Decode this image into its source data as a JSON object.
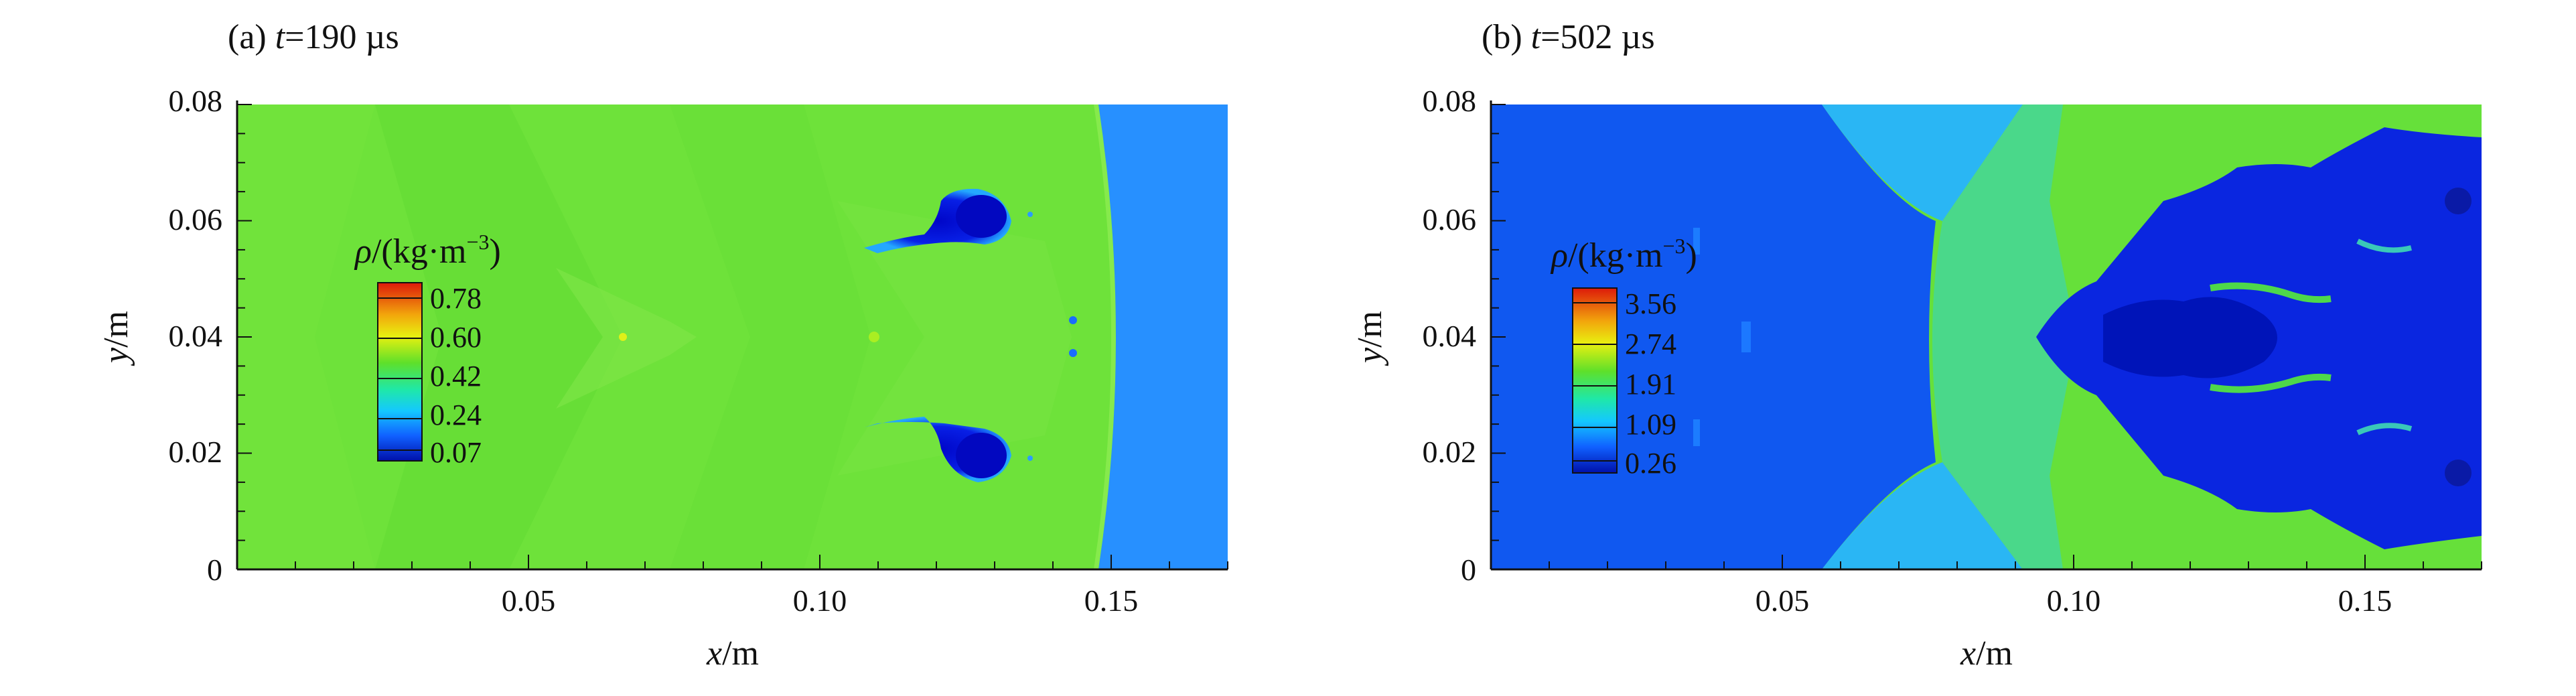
{
  "panels": [
    {
      "label": "(a)",
      "time_symbol": "t",
      "time_value": "=190 µs",
      "xlabel_var": "x",
      "xlabel_unit": "/m",
      "ylabel_var": "y",
      "ylabel_unit": "/m",
      "x_ticks": [
        "0.05",
        "0.10",
        "0.15"
      ],
      "y_ticks": [
        "0",
        "0.02",
        "0.04",
        "0.06",
        "0.08"
      ],
      "legend_title_sym": "ρ",
      "legend_title_unit": "/(kg·m",
      "legend_title_exp": "−3",
      "legend_title_close": ")",
      "legend_values": [
        "0.78",
        "0.60",
        "0.42",
        "0.24",
        "0.07"
      ]
    },
    {
      "label": "(b)",
      "time_symbol": "t",
      "time_value": "=502 µs",
      "xlabel_var": "x",
      "xlabel_unit": "/m",
      "ylabel_var": "y",
      "ylabel_unit": "/m",
      "x_ticks": [
        "0.05",
        "0.10",
        "0.15"
      ],
      "y_ticks": [
        "0",
        "0.02",
        "0.04",
        "0.06",
        "0.08"
      ],
      "legend_title_sym": "ρ",
      "legend_title_unit": "/(kg·m",
      "legend_title_exp": "−3",
      "legend_title_close": ")",
      "legend_values": [
        "3.56",
        "2.74",
        "1.91",
        "1.09",
        "0.26"
      ]
    }
  ],
  "chart_data": [
    {
      "type": "heatmap",
      "xlim": [
        0,
        0.17
      ],
      "ylim": [
        0,
        0.08
      ],
      "colorbar_ticks": [
        0.78,
        0.6,
        0.42,
        0.24,
        0.07
      ],
      "colormap_stops": [
        "#dd1a0a",
        "#f2a60c",
        "#e8f010",
        "#5ee02a",
        "#1fe8a8",
        "#14c8ff",
        "#1060ff",
        "#0010aa"
      ]
    },
    {
      "type": "heatmap",
      "xlim": [
        0,
        0.17
      ],
      "ylim": [
        0,
        0.08
      ],
      "colorbar_ticks": [
        3.56,
        2.74,
        1.91,
        1.09,
        0.26
      ],
      "colormap_stops": [
        "#dd1a0a",
        "#f2a60c",
        "#e8f010",
        "#5ee02a",
        "#1fe8a8",
        "#14c8ff",
        "#1060ff",
        "#0010aa"
      ]
    }
  ]
}
